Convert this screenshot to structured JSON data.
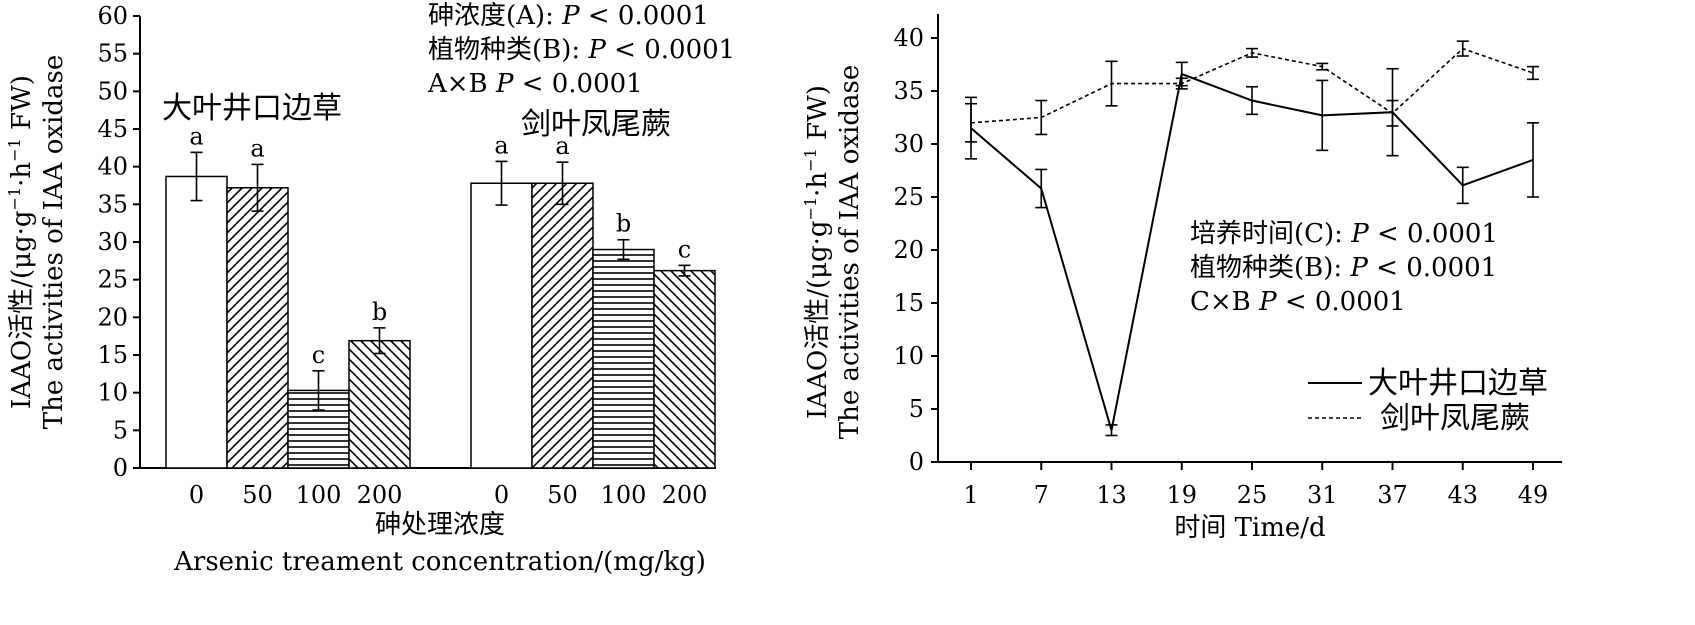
{
  "chart_data": [
    {
      "type": "bar",
      "ylabel_cn": "IAAO活性/(μg·g",
      "ylabel_sup1": "−1",
      "ylabel_mid": "·h",
      "ylabel_sup2": "−1",
      "ylabel_end": " FW)",
      "ylabel_en": "The activities of IAA oxidase",
      "xlabel_cn": "砷处理浓度",
      "xlabel_en": "Arsenic treament concentration/(mg/kg)",
      "ylim": [
        0,
        60
      ],
      "yticks": [
        0,
        5,
        10,
        15,
        20,
        25,
        30,
        35,
        40,
        45,
        50,
        55,
        60
      ],
      "categories": [
        "0",
        "50",
        "100",
        "200"
      ],
      "series": [
        {
          "name": "大叶井口边草",
          "values": [
            38.7,
            37.2,
            10.3,
            16.9
          ],
          "errors": [
            3.2,
            3.1,
            2.6,
            1.7
          ],
          "letters": [
            "a",
            "a",
            "c",
            "b"
          ]
        },
        {
          "name": "剑叶凤尾蕨",
          "values": [
            37.8,
            37.8,
            29.0,
            26.2
          ],
          "errors": [
            2.9,
            2.8,
            1.3,
            0.7
          ],
          "letters": [
            "a",
            "a",
            "b",
            "c"
          ]
        }
      ],
      "patterns": [
        "none",
        "diag-right",
        "horizontal",
        "diag-left"
      ],
      "stats": [
        {
          "label": "砷浓度(A): ",
          "p": "P",
          "rest": " < 0.0001"
        },
        {
          "label": "植物种类(B): ",
          "p": "P",
          "rest": " < 0.0001"
        },
        {
          "label": "A×B   ",
          "p": "P",
          "rest": " < 0.0001"
        }
      ]
    },
    {
      "type": "line",
      "ylabel_cn": "IAAO活性/(μg·g",
      "ylabel_sup1": "−1",
      "ylabel_mid": "·h",
      "ylabel_sup2": "−1",
      "ylabel_end": " FW)",
      "ylabel_en": "The activities of IAA oxidase",
      "xlabel": "时间 Time/d",
      "ylim": [
        0,
        40
      ],
      "yticks": [
        0,
        5,
        10,
        15,
        20,
        25,
        30,
        35,
        40
      ],
      "x": [
        1,
        7,
        13,
        19,
        25,
        31,
        37,
        43,
        49
      ],
      "series": [
        {
          "name": "大叶井口边草",
          "style": "solid",
          "values": [
            31.5,
            25.8,
            3.0,
            36.6,
            34.1,
            32.7,
            33.0,
            26.1,
            28.5
          ],
          "errors": [
            2.9,
            1.8,
            0.5,
            1.1,
            1.3,
            3.3,
            4.1,
            1.7,
            3.5
          ]
        },
        {
          "name": "剑叶凤尾蕨",
          "style": "dashed",
          "values": [
            32.0,
            32.5,
            35.7,
            35.7,
            38.6,
            37.3,
            32.9,
            39.0,
            36.7
          ],
          "errors": [
            1.8,
            1.6,
            2.1,
            0.5,
            0.4,
            0.3,
            1.2,
            0.7,
            0.6
          ]
        }
      ],
      "stats": [
        {
          "label": "培养时间(C): ",
          "p": "P",
          "rest": " < 0.0001"
        },
        {
          "label": "植物种类(B): ",
          "p": "P",
          "rest": " < 0.0001"
        },
        {
          "label": "C×B   ",
          "p": "P",
          "rest": " < 0.0001"
        }
      ],
      "legend_position": "bottom-right"
    }
  ]
}
